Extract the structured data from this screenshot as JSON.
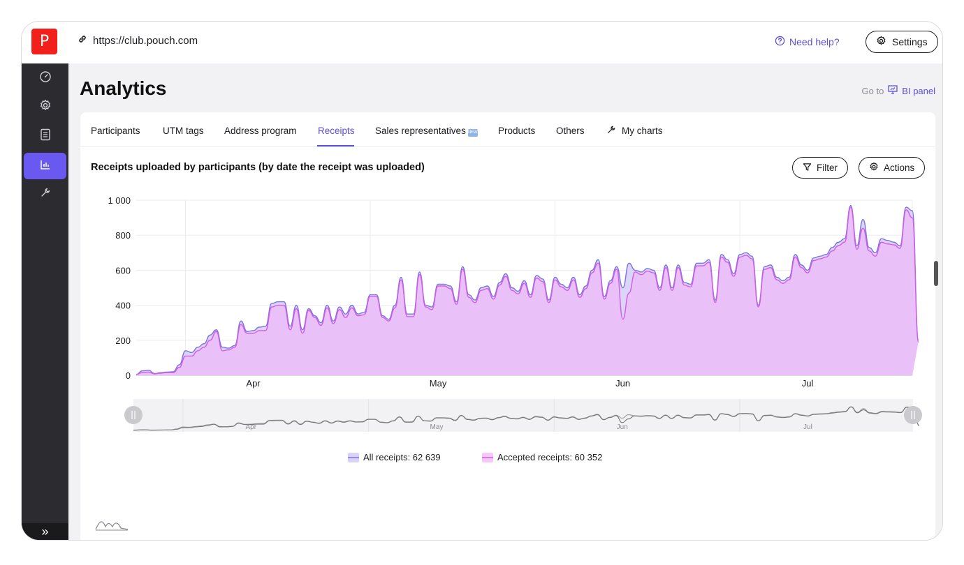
{
  "app": {
    "logo_letter": "P",
    "url": "https://club.pouch.com",
    "help_label": "Need help?",
    "settings_label": "Settings"
  },
  "sidebar": {
    "items": [
      {
        "icon": "dashboard-icon",
        "active": false
      },
      {
        "icon": "gear-icon",
        "active": false
      },
      {
        "icon": "document-list-icon",
        "active": false
      },
      {
        "icon": "bar-chart-icon",
        "active": true
      },
      {
        "icon": "wrench-icon",
        "active": false
      }
    ],
    "expand_label": "»"
  },
  "page": {
    "title": "Analytics",
    "goto_label": "Go to",
    "bi_label": "BI panel"
  },
  "tabs": [
    {
      "label": "Participants",
      "active": false
    },
    {
      "label": "UTM tags",
      "active": false
    },
    {
      "label": "Address program",
      "active": false
    },
    {
      "label": "Receipts",
      "active": true
    },
    {
      "label": "Sales representatives",
      "active": false,
      "badge": "new"
    },
    {
      "label": "Products",
      "active": false
    },
    {
      "label": "Others",
      "active": false
    },
    {
      "label": "My charts",
      "active": false,
      "icon": "wrench-icon"
    }
  ],
  "chart_toolbar": {
    "filter_label": "Filter",
    "actions_label": "Actions"
  },
  "chart_data": {
    "type": "area",
    "title": "Receipts uploaded by participants (by date the receipt was uploaded)",
    "xlabel": "",
    "ylabel": "",
    "ylim": [
      0,
      1000
    ],
    "y_ticks": [
      "0",
      "200",
      "400",
      "600",
      "800",
      "1 000"
    ],
    "x_ticks": [
      "Apr",
      "May",
      "Jun",
      "Jul"
    ],
    "x_tick_days": [
      19,
      49,
      79,
      109
    ],
    "days": 127,
    "grid": true,
    "legend_position": "bottom-center",
    "series": [
      {
        "name": "All receipts",
        "total_label": "All receipts: 62 639",
        "color": "#7b74e0",
        "fill": "#d9d2fb",
        "values": [
          5,
          25,
          28,
          10,
          15,
          18,
          20,
          60,
          140,
          130,
          160,
          180,
          230,
          260,
          160,
          155,
          170,
          310,
          250,
          255,
          275,
          280,
          410,
          420,
          420,
          280,
          400,
          260,
          380,
          340,
          300,
          400,
          310,
          390,
          350,
          400,
          350,
          360,
          460,
          460,
          340,
          320,
          400,
          560,
          350,
          350,
          590,
          400,
          390,
          520,
          520,
          510,
          420,
          620,
          460,
          430,
          500,
          510,
          450,
          530,
          580,
          500,
          480,
          540,
          460,
          570,
          550,
          430,
          560,
          520,
          500,
          560,
          460,
          510,
          600,
          660,
          450,
          540,
          620,
          500,
          640,
          600,
          590,
          610,
          600,
          500,
          630,
          500,
          630,
          530,
          520,
          640,
          640,
          660,
          430,
          690,
          660,
          580,
          690,
          700,
          680,
          400,
          620,
          630,
          560,
          540,
          560,
          690,
          630,
          600,
          670,
          680,
          690,
          730,
          760,
          780,
          970,
          740,
          890,
          730,
          700,
          780,
          770,
          760,
          740,
          960,
          940,
          200
        ]
      },
      {
        "name": "Accepted receipts",
        "total_label": "Accepted receipts: 60 352",
        "color": "#d15de6",
        "fill": "#ecbcf7",
        "values": [
          5,
          15,
          18,
          8,
          12,
          15,
          15,
          45,
          110,
          110,
          140,
          160,
          200,
          250,
          140,
          145,
          160,
          290,
          240,
          240,
          255,
          255,
          390,
          400,
          400,
          260,
          380,
          240,
          370,
          330,
          285,
          385,
          295,
          375,
          330,
          385,
          340,
          345,
          450,
          450,
          330,
          310,
          385,
          545,
          335,
          335,
          575,
          390,
          375,
          510,
          510,
          495,
          405,
          605,
          445,
          415,
          485,
          495,
          435,
          515,
          565,
          485,
          465,
          525,
          445,
          555,
          535,
          415,
          545,
          505,
          485,
          545,
          445,
          495,
          585,
          640,
          435,
          525,
          605,
          320,
          470,
          590,
          575,
          595,
          585,
          485,
          615,
          485,
          615,
          515,
          505,
          625,
          625,
          645,
          415,
          675,
          645,
          565,
          675,
          685,
          665,
          390,
          605,
          615,
          545,
          525,
          545,
          675,
          615,
          585,
          655,
          665,
          675,
          710,
          740,
          760,
          960,
          720,
          840,
          710,
          680,
          760,
          750,
          745,
          725,
          945,
          900,
          190
        ]
      }
    ]
  }
}
